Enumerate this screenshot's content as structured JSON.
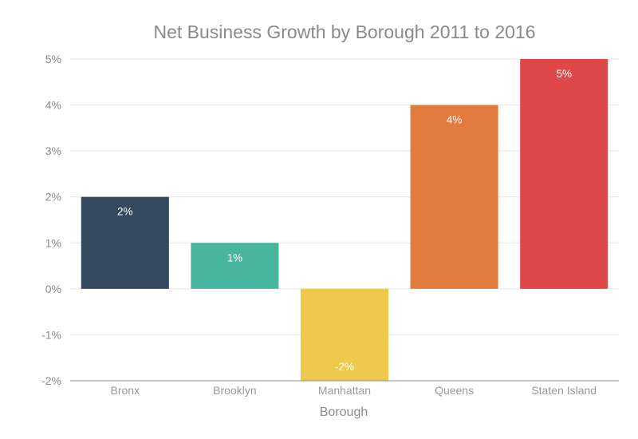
{
  "chart_data": {
    "type": "bar",
    "title": "Net Business Growth by Borough 2011 to 2016",
    "xlabel": "Borough",
    "ylabel": "",
    "categories": [
      "Bronx",
      "Brooklyn",
      "Manhattan",
      "Queens",
      "Staten Island"
    ],
    "values": [
      2,
      1,
      -2,
      4,
      5
    ],
    "data_labels": [
      "2%",
      "1%",
      "-2%",
      "4%",
      "5%"
    ],
    "colors": [
      "#34495e",
      "#48b59e",
      "#efc94c",
      "#e27b3e",
      "#de4849"
    ],
    "ylim": [
      -2,
      5
    ],
    "yticks": [
      "-2%",
      "-1%",
      "0%",
      "1%",
      "2%",
      "3%",
      "4%",
      "5%"
    ],
    "grid": true,
    "legend": "none"
  }
}
